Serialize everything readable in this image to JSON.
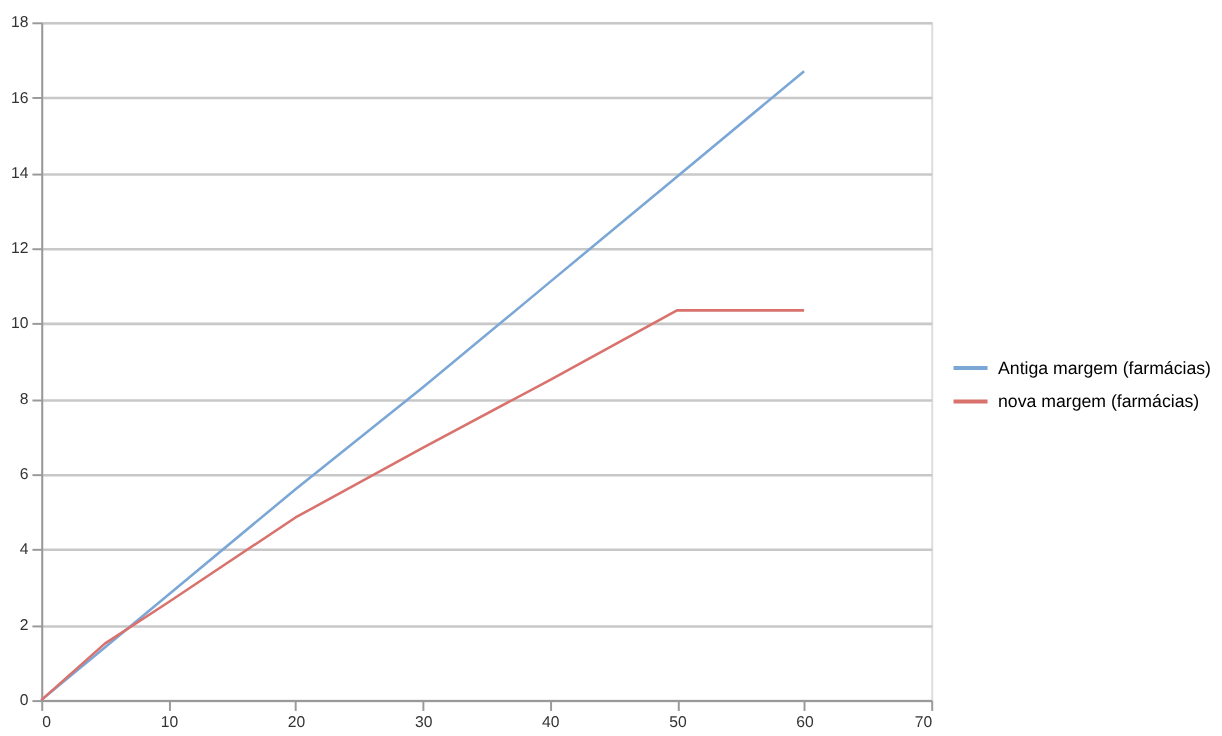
{
  "chart_data": {
    "type": "line",
    "x": [
      0,
      5,
      10,
      20,
      30,
      40,
      50,
      60
    ],
    "series": [
      {
        "name": "Antiga margem (farmácias)",
        "color": "#7ba7d7",
        "values": [
          0,
          1.4,
          2.8,
          5.6,
          8.3,
          11.1,
          13.9,
          16.7
        ]
      },
      {
        "name": "nova margem (farmácias)",
        "color": "#d9726c",
        "values": [
          0,
          1.5,
          2.6,
          4.85,
          6.7,
          8.5,
          10.35,
          10.35
        ]
      }
    ],
    "xlim": [
      0,
      70
    ],
    "xticks": [
      0,
      10,
      20,
      30,
      40,
      50,
      60,
      70
    ],
    "ylim": [
      0,
      18
    ],
    "yticks": [
      0,
      2,
      4,
      6,
      8,
      10,
      12,
      14,
      16,
      18
    ],
    "grid": "y",
    "legend": "right",
    "marker": "none",
    "line_style": "solid"
  }
}
